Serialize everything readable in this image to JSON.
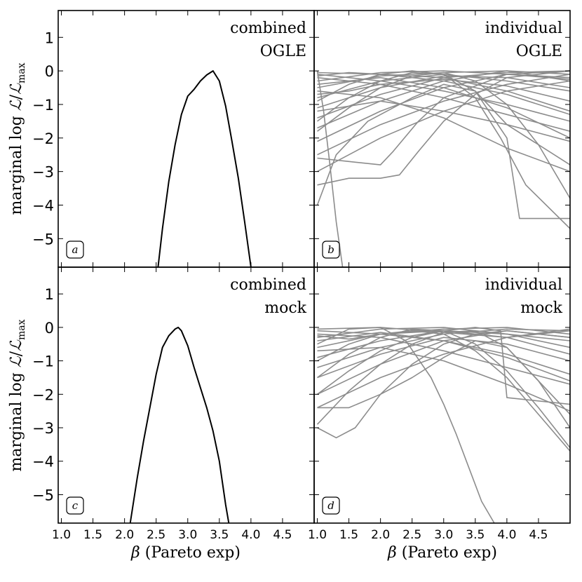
{
  "chart_data": [
    {
      "panel": "a",
      "type": "line",
      "corner_text": [
        "combined",
        "OGLE"
      ],
      "ylabel": "marginal log ℒ/ℒmax",
      "xlabel": "",
      "xlim": [
        0.95,
        5.0
      ],
      "ylim": [
        -5.85,
        1.8
      ],
      "line_color": "#000000",
      "series": [
        {
          "name": "combined",
          "x": [
            2.53,
            2.6,
            2.7,
            2.8,
            2.9,
            3.0,
            3.1,
            3.2,
            3.3,
            3.4,
            3.5,
            3.6,
            3.7,
            3.8,
            3.9,
            4.0
          ],
          "y": [
            -5.85,
            -4.7,
            -3.3,
            -2.2,
            -1.3,
            -0.75,
            -0.55,
            -0.3,
            -0.12,
            0.0,
            -0.3,
            -1.05,
            -2.1,
            -3.2,
            -4.5,
            -5.85
          ]
        }
      ]
    },
    {
      "panel": "b",
      "type": "line",
      "corner_text": [
        "individual",
        "OGLE"
      ],
      "xlim": [
        0.95,
        5.0
      ],
      "ylim": [
        -5.85,
        1.8
      ],
      "line_color": "#8c8c8c",
      "series": [
        {
          "name": "s1",
          "x": [
            1.0,
            2.0,
            3.0,
            4.0,
            5.0
          ],
          "y": [
            -0.05,
            -0.1,
            -0.2,
            -0.05,
            0.0
          ]
        },
        {
          "name": "s2",
          "x": [
            1.0,
            2.0,
            3.0,
            4.0,
            5.0
          ],
          "y": [
            -0.3,
            -0.05,
            0.0,
            -0.1,
            -0.25
          ]
        },
        {
          "name": "s3",
          "x": [
            1.0,
            2.0,
            3.0,
            4.0,
            5.0
          ],
          "y": [
            -0.5,
            -0.15,
            -0.05,
            0.0,
            -0.1
          ]
        },
        {
          "name": "s4",
          "x": [
            1.0,
            2.0,
            3.0,
            4.0,
            5.0
          ],
          "y": [
            -0.8,
            -0.3,
            -0.1,
            -0.3,
            -0.6
          ]
        },
        {
          "name": "s5",
          "x": [
            1.0,
            2.0,
            3.0,
            4.0,
            5.0
          ],
          "y": [
            -1.1,
            -0.5,
            -0.15,
            -0.2,
            -0.5
          ]
        },
        {
          "name": "s6",
          "x": [
            1.0,
            2.0,
            3.0,
            4.0,
            5.0
          ],
          "y": [
            -1.4,
            -0.7,
            -0.2,
            -0.6,
            -1.2
          ]
        },
        {
          "name": "s7",
          "x": [
            1.0,
            2.0,
            3.0,
            4.0,
            5.0
          ],
          "y": [
            -1.7,
            -0.9,
            -0.3,
            0.0,
            -0.3
          ]
        },
        {
          "name": "s8",
          "x": [
            1.0,
            2.0,
            3.0,
            4.0,
            5.0
          ],
          "y": [
            -0.2,
            -0.4,
            -0.8,
            -1.3,
            -1.8
          ]
        },
        {
          "name": "s9",
          "x": [
            1.0,
            2.0,
            3.0,
            4.0,
            5.0
          ],
          "y": [
            -0.1,
            -0.3,
            -0.6,
            -1.0,
            -1.5
          ]
        },
        {
          "name": "s10",
          "x": [
            1.0,
            2.0,
            3.0,
            4.0,
            5.0
          ],
          "y": [
            -0.4,
            -0.2,
            -0.5,
            -1.1,
            -2.0
          ]
        },
        {
          "name": "s11",
          "x": [
            1.0,
            2.0,
            3.0,
            4.0,
            5.0
          ],
          "y": [
            -2.1,
            -1.2,
            -0.5,
            -0.1,
            -0.2
          ]
        },
        {
          "name": "s12",
          "x": [
            1.0,
            2.0,
            3.0,
            4.0,
            5.0
          ],
          "y": [
            -2.5,
            -1.6,
            -0.9,
            -0.4,
            -0.1
          ]
        },
        {
          "name": "s13",
          "x": [
            1.0,
            2.0,
            3.0,
            4.0,
            5.0
          ],
          "y": [
            -3.0,
            -2.0,
            -1.2,
            -0.6,
            -0.3
          ]
        },
        {
          "name": "s14",
          "x": [
            1.0,
            2.0,
            3.0,
            4.0,
            5.0
          ],
          "y": [
            -1.2,
            -0.9,
            -1.2,
            -1.6,
            -2.1
          ]
        },
        {
          "name": "s15",
          "x": [
            1.0,
            2.0,
            3.0,
            4.0,
            5.0
          ],
          "y": [
            -0.6,
            -0.8,
            -1.4,
            -2.3,
            -3.0
          ]
        },
        {
          "name": "s16",
          "x": [
            1.0,
            1.5,
            2.0,
            2.5,
            3.0,
            3.5,
            4.0,
            4.5,
            5.0
          ],
          "y": [
            -1.8,
            -1.1,
            -0.5,
            -0.15,
            -0.05,
            -0.3,
            -1.0,
            -2.2,
            -3.8
          ]
        },
        {
          "name": "s17",
          "x": [
            1.0,
            1.5,
            2.0,
            2.5,
            3.0,
            3.5,
            4.0,
            4.2,
            5.0
          ],
          "y": [
            -0.9,
            -0.4,
            -0.1,
            0.0,
            -0.1,
            -0.6,
            -2.0,
            -4.4,
            -4.4
          ]
        },
        {
          "name": "s18",
          "x": [
            1.0,
            1.5,
            2.0,
            2.5,
            3.0,
            3.5,
            3.9,
            4.3,
            5.0
          ],
          "y": [
            -1.5,
            -0.8,
            -0.3,
            -0.05,
            -0.1,
            -0.8,
            -2.0,
            -3.4,
            -4.7
          ]
        },
        {
          "name": "s19",
          "x": [
            1.0,
            1.1,
            1.2,
            1.3,
            1.4
          ],
          "y": [
            0.0,
            -1.2,
            -2.8,
            -4.5,
            -5.85
          ]
        },
        {
          "name": "s20",
          "x": [
            1.0,
            1.5,
            2.0,
            2.3,
            2.6,
            3.0,
            3.5,
            4.0,
            5.0
          ],
          "y": [
            -3.4,
            -3.2,
            -3.2,
            -3.1,
            -2.4,
            -1.5,
            -0.7,
            -0.2,
            0.0
          ]
        },
        {
          "name": "s21",
          "x": [
            1.0,
            1.5,
            2.0,
            2.2,
            2.6,
            3.0,
            4.0,
            5.0
          ],
          "y": [
            -2.6,
            -2.7,
            -2.8,
            -2.4,
            -1.5,
            -0.8,
            -0.1,
            0.0
          ]
        },
        {
          "name": "s22",
          "x": [
            1.0,
            1.3,
            1.8,
            2.5,
            3.0,
            3.5,
            4.0,
            5.0
          ],
          "y": [
            -4.0,
            -2.5,
            -1.5,
            -0.8,
            -0.4,
            -0.6,
            -1.6,
            -2.8
          ]
        },
        {
          "name": "s23",
          "x": [
            1.0,
            1.5,
            2.0,
            3.0,
            4.0,
            5.0
          ],
          "y": [
            -0.15,
            -0.05,
            -0.1,
            -0.3,
            -0.7,
            -1.3
          ]
        },
        {
          "name": "s24",
          "x": [
            1.0,
            1.5,
            2.0,
            3.0,
            4.0,
            5.0
          ],
          "y": [
            -0.7,
            -0.6,
            -0.4,
            -0.25,
            -0.45,
            -0.9
          ]
        }
      ]
    },
    {
      "panel": "c",
      "type": "line",
      "corner_text": [
        "combined",
        "mock"
      ],
      "ylabel": "marginal log ℒ/ℒmax",
      "xlabel": "β (Pareto exp)",
      "xlim": [
        0.95,
        5.0
      ],
      "ylim": [
        -5.85,
        1.8
      ],
      "line_color": "#000000",
      "series": [
        {
          "name": "combined",
          "x": [
            2.09,
            2.2,
            2.3,
            2.4,
            2.5,
            2.6,
            2.7,
            2.8,
            2.85,
            2.9,
            3.0,
            3.1,
            3.2,
            3.3,
            3.4,
            3.5,
            3.6,
            3.65
          ],
          "y": [
            -5.85,
            -4.5,
            -3.4,
            -2.4,
            -1.4,
            -0.6,
            -0.25,
            -0.05,
            0.0,
            -0.1,
            -0.55,
            -1.2,
            -1.8,
            -2.4,
            -3.1,
            -4.0,
            -5.3,
            -5.85
          ]
        }
      ]
    },
    {
      "panel": "d",
      "type": "line",
      "corner_text": [
        "individual",
        "mock"
      ],
      "xlabel": "β (Pareto exp)",
      "xlim": [
        0.95,
        5.0
      ],
      "ylim": [
        -5.85,
        1.8
      ],
      "line_color": "#8c8c8c",
      "series": [
        {
          "name": "m1",
          "x": [
            1.0,
            2.0,
            3.0,
            4.0,
            5.0
          ],
          "y": [
            -0.05,
            0.0,
            -0.15,
            -0.3,
            -0.05
          ]
        },
        {
          "name": "m2",
          "x": [
            1.0,
            2.0,
            3.0,
            4.0,
            5.0
          ],
          "y": [
            -0.3,
            -0.05,
            0.0,
            -0.2,
            -0.4
          ]
        },
        {
          "name": "m3",
          "x": [
            1.0,
            2.0,
            3.0,
            4.0,
            5.0
          ],
          "y": [
            -0.6,
            -0.2,
            -0.05,
            0.0,
            -0.2
          ]
        },
        {
          "name": "m4",
          "x": [
            1.0,
            2.0,
            3.0,
            4.0,
            5.0
          ],
          "y": [
            -0.9,
            -0.4,
            -0.1,
            -0.2,
            -0.6
          ]
        },
        {
          "name": "m5",
          "x": [
            1.0,
            2.0,
            3.0,
            4.0,
            5.0
          ],
          "y": [
            -1.2,
            -0.6,
            -0.2,
            -0.05,
            -0.1
          ]
        },
        {
          "name": "m6",
          "x": [
            1.0,
            2.0,
            3.0,
            4.0,
            5.0
          ],
          "y": [
            -1.5,
            -0.8,
            -0.3,
            -0.5,
            -1.0
          ]
        },
        {
          "name": "m7",
          "x": [
            1.0,
            2.0,
            3.0,
            4.0,
            5.0
          ],
          "y": [
            -0.2,
            -0.3,
            -0.7,
            -1.2,
            -1.7
          ]
        },
        {
          "name": "m8",
          "x": [
            1.0,
            2.0,
            3.0,
            4.0,
            5.0
          ],
          "y": [
            -0.1,
            -0.2,
            -0.4,
            -0.8,
            -1.4
          ]
        },
        {
          "name": "m9",
          "x": [
            1.0,
            2.0,
            3.0,
            4.0,
            5.0
          ],
          "y": [
            -0.4,
            -0.15,
            -0.4,
            -0.9,
            -1.6
          ]
        },
        {
          "name": "m10",
          "x": [
            1.0,
            2.0,
            3.0,
            4.0,
            5.0
          ],
          "y": [
            -2.0,
            -1.1,
            -0.4,
            -0.1,
            -0.3
          ]
        },
        {
          "name": "m11",
          "x": [
            1.0,
            2.0,
            3.0,
            4.0,
            5.0
          ],
          "y": [
            -2.4,
            -1.5,
            -0.8,
            -0.3,
            -0.1
          ]
        },
        {
          "name": "m12",
          "x": [
            1.0,
            2.0,
            3.0,
            4.0,
            5.0
          ],
          "y": [
            -0.7,
            -0.6,
            -1.0,
            -1.7,
            -2.5
          ]
        },
        {
          "name": "m13",
          "x": [
            1.0,
            1.5,
            2.0,
            2.5,
            3.0,
            3.5,
            4.0,
            4.5,
            5.0
          ],
          "y": [
            -1.5,
            -0.8,
            -0.3,
            -0.05,
            -0.1,
            -0.5,
            -1.3,
            -2.4,
            -3.6
          ]
        },
        {
          "name": "m14",
          "x": [
            1.0,
            1.5,
            2.0,
            2.5,
            3.0,
            3.5,
            4.0,
            4.5,
            5.0
          ],
          "y": [
            -2.9,
            -1.9,
            -1.1,
            -0.5,
            -0.15,
            -0.1,
            -0.6,
            -1.6,
            -3.0
          ]
        },
        {
          "name": "m15",
          "x": [
            1.0,
            1.3,
            1.6,
            2.0,
            2.5,
            3.0,
            3.5,
            4.0,
            5.0
          ],
          "y": [
            -3.0,
            -3.3,
            -3.0,
            -2.0,
            -1.1,
            -0.5,
            -0.2,
            -0.1,
            -0.3
          ]
        },
        {
          "name": "m16",
          "x": [
            1.0,
            1.5,
            2.0,
            2.4,
            2.8,
            3.0,
            3.2,
            3.4,
            3.6,
            3.8
          ],
          "y": [
            -0.5,
            -0.05,
            0.0,
            -0.4,
            -1.5,
            -2.3,
            -3.2,
            -4.2,
            -5.2,
            -5.85
          ]
        },
        {
          "name": "m17",
          "x": [
            1.0,
            1.5,
            2.0,
            2.5,
            3.0,
            3.5,
            4.0,
            4.5,
            5.0
          ],
          "y": [
            -1.0,
            -0.5,
            -0.2,
            -0.1,
            -0.2,
            -0.7,
            -1.5,
            -2.6,
            -3.7
          ]
        },
        {
          "name": "m18",
          "x": [
            1.0,
            1.5,
            2.0,
            2.5,
            3.0,
            3.5,
            3.9,
            4.0,
            5.0
          ],
          "y": [
            -2.0,
            -1.3,
            -0.7,
            -0.3,
            -0.1,
            0.0,
            -0.1,
            -2.1,
            -2.3
          ]
        },
        {
          "name": "m19",
          "x": [
            1.0,
            1.5,
            2.0,
            2.5,
            3.0,
            3.5,
            4.0,
            5.0
          ],
          "y": [
            -2.4,
            -2.4,
            -2.0,
            -1.5,
            -0.9,
            -0.4,
            -0.6,
            -2.6
          ]
        },
        {
          "name": "m20",
          "x": [
            1.0,
            1.5,
            2.0,
            3.0,
            4.0,
            5.0
          ],
          "y": [
            -0.25,
            -0.35,
            -0.2,
            -0.1,
            -0.3,
            -0.8
          ]
        }
      ]
    }
  ],
  "axes": {
    "yticks": [
      "1",
      "0",
      "−1",
      "−2",
      "−3",
      "−4",
      "−5"
    ],
    "ytick_values": [
      1,
      0,
      -1,
      -2,
      -3,
      -4,
      -5
    ],
    "xticks": [
      "1.0",
      "1.5",
      "2.0",
      "2.5",
      "3.0",
      "3.5",
      "4.0",
      "4.5"
    ],
    "xtick_values": [
      1.0,
      1.5,
      2.0,
      2.5,
      3.0,
      3.5,
      4.0,
      4.5
    ]
  },
  "labels": {
    "ylabel_main": "marginal log ",
    "ylabel_L": "ℒ",
    "ylabel_slash": "/",
    "ylabel_sub": "max",
    "xlabel_beta": "β",
    "xlabel_rest": " (Pareto exp)"
  },
  "panel_tags": [
    "a",
    "b",
    "c",
    "d"
  ]
}
